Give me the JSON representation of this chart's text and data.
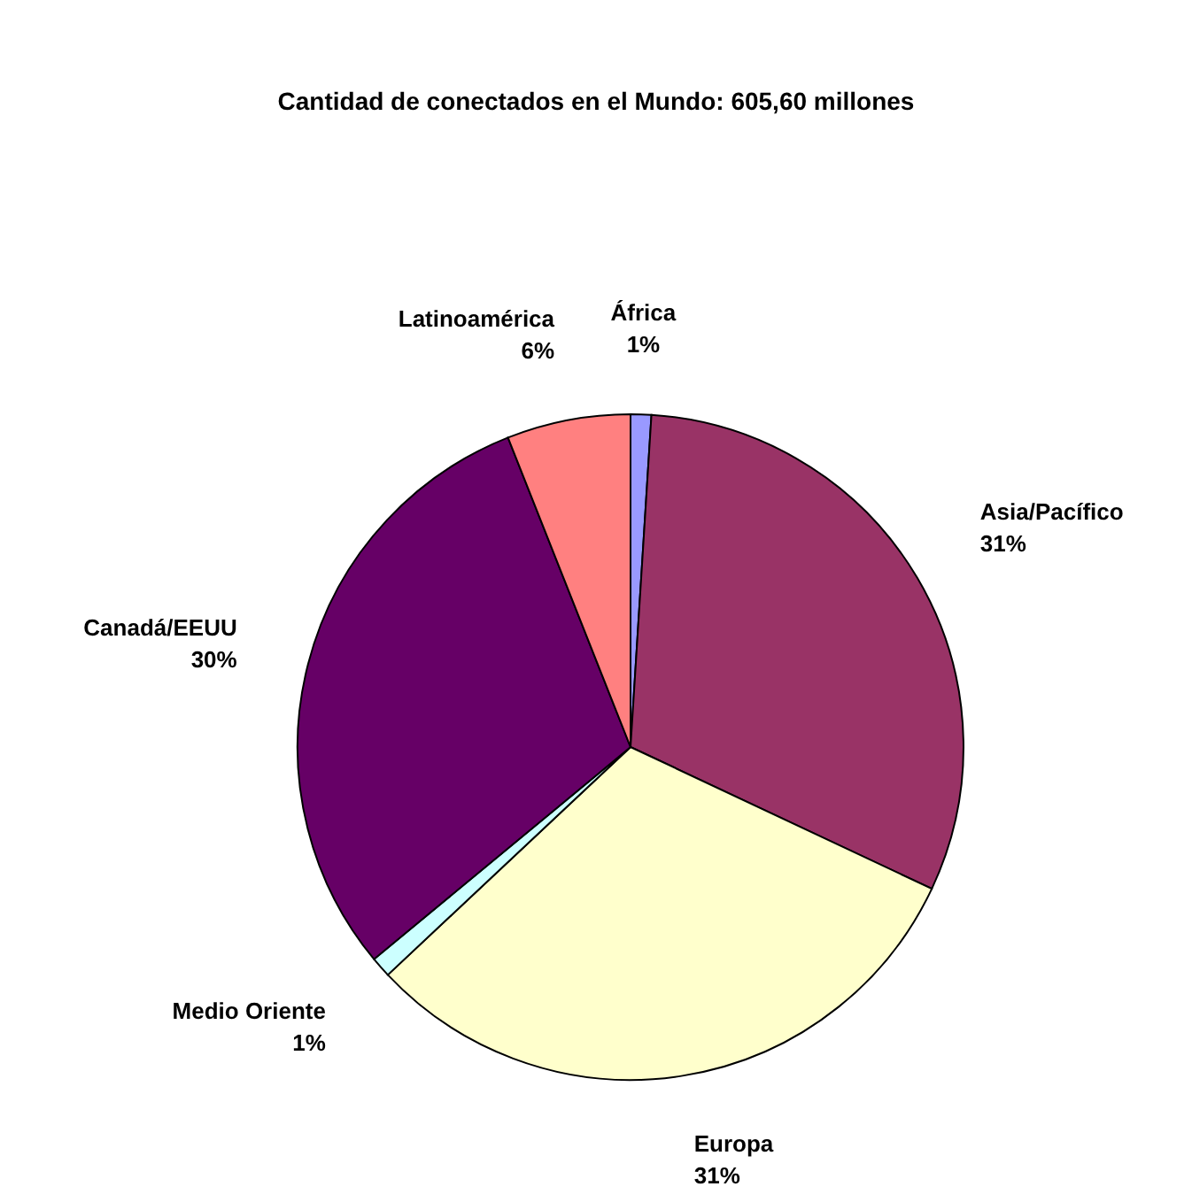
{
  "chart_data": {
    "type": "pie",
    "title": "Cantidad de conectados en el Mundo: 605,60 millones",
    "categories": [
      "África",
      "Asia/Pacífico",
      "Europa",
      "Medio Oriente",
      "Canadá/EEUU",
      "Latinoamérica"
    ],
    "values": [
      1,
      31,
      31,
      1,
      30,
      6
    ],
    "colors": [
      "#9999ff",
      "#993366",
      "#ffffcc",
      "#ccffff",
      "#660066",
      "#ff8080"
    ],
    "value_labels": [
      "1%",
      "31%",
      "31%",
      "1%",
      "30%",
      "6%"
    ]
  }
}
